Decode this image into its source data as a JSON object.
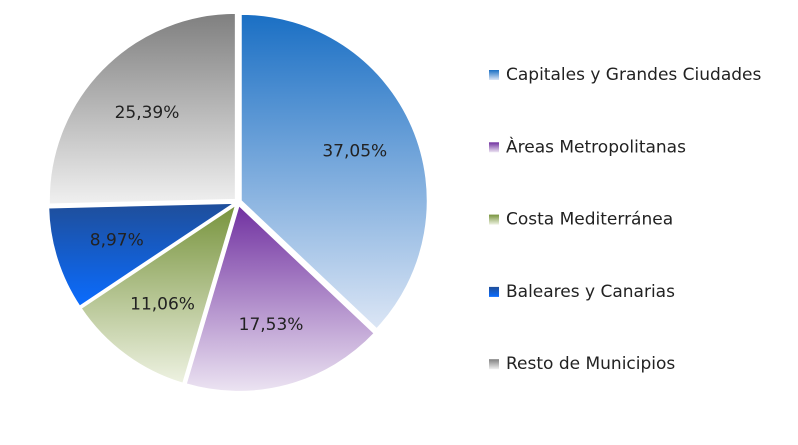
{
  "chart_data": {
    "type": "pie",
    "categories": [
      "Capitales y Grandes Ciudades",
      "Àreas Metropolitanas",
      "Costa Mediterránea",
      "Baleares y Canarias",
      "Resto de Municipios"
    ],
    "values": [
      37.05,
      17.53,
      11.06,
      8.97,
      25.39
    ],
    "value_labels": [
      "37,05%",
      "17,53%",
      "11,06%",
      "8,97%",
      "25,39%"
    ],
    "colors": [
      "#1a6fc4",
      "#7030a0",
      "#77933c",
      "#1f4e9a",
      "#7f7f7f"
    ],
    "legend": "right"
  }
}
